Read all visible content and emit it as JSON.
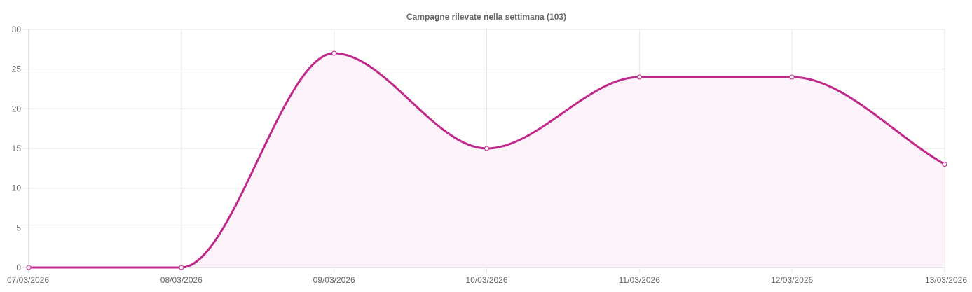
{
  "chart_data": {
    "type": "area",
    "title": "Campagne rilevate nella settimana (103)",
    "categories": [
      "07/03/2026",
      "08/03/2026",
      "09/03/2026",
      "10/03/2026",
      "11/03/2026",
      "12/03/2026",
      "13/03/2026"
    ],
    "series": [
      {
        "values": [
          0,
          0,
          27,
          15,
          24,
          24,
          13
        ]
      }
    ],
    "ylim": [
      0,
      30
    ],
    "yticks": [
      0,
      5,
      10,
      15,
      20,
      25,
      30
    ],
    "xlabel": "",
    "ylabel": "",
    "grid": true,
    "legend": "none",
    "colors": {
      "line": "#c0288a",
      "fill": "#fbf3f9",
      "grid": "#e5e5e5",
      "axis": "#cccccc",
      "text": "#666666"
    }
  }
}
